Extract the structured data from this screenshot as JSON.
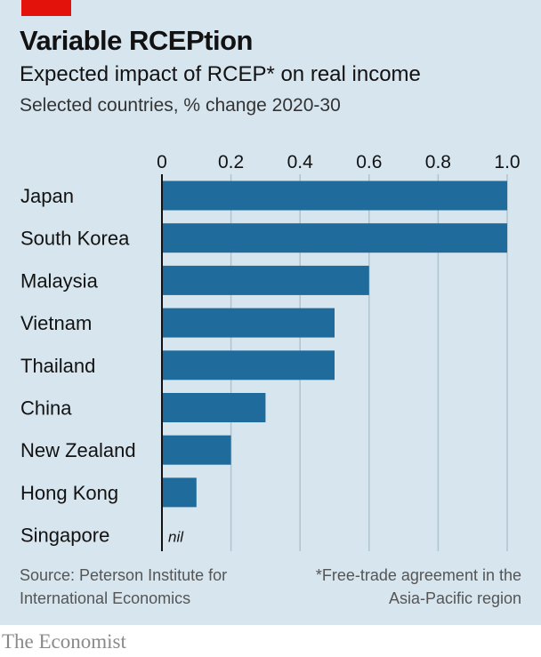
{
  "header": {
    "title": "Variable RCEPtion",
    "subtitle": "Expected impact of RCEP* on real income",
    "subsubtitle": "Selected countries, % change 2020-30"
  },
  "footer": {
    "source": "Source: Peterson Institute for International Economics",
    "note": "*Free-trade agreement in the Asia-Pacific region",
    "brand": "The Economist"
  },
  "colors": {
    "background": "#d7e5ee",
    "bar": "#1f6c9c",
    "grid": "#b0c4d0",
    "accent": "#e3120b"
  },
  "chart_data": {
    "type": "bar",
    "orientation": "horizontal",
    "title": "Variable RCEPtion",
    "subtitle": "Expected impact of RCEP* on real income",
    "xlabel": "",
    "ylabel": "",
    "categories": [
      "Japan",
      "South Korea",
      "Malaysia",
      "Vietnam",
      "Thailand",
      "China",
      "New Zealand",
      "Hong Kong",
      "Singapore"
    ],
    "values": [
      1.0,
      1.0,
      0.6,
      0.5,
      0.5,
      0.3,
      0.2,
      0.1,
      0
    ],
    "value_labels": [
      "",
      "",
      "",
      "",
      "",
      "",
      "",
      "",
      "nil"
    ],
    "xlim": [
      0,
      1.0
    ],
    "xticks": [
      "0",
      "0.2",
      "0.4",
      "0.6",
      "0.8",
      "1.0"
    ],
    "grid": true,
    "legend": "none"
  }
}
